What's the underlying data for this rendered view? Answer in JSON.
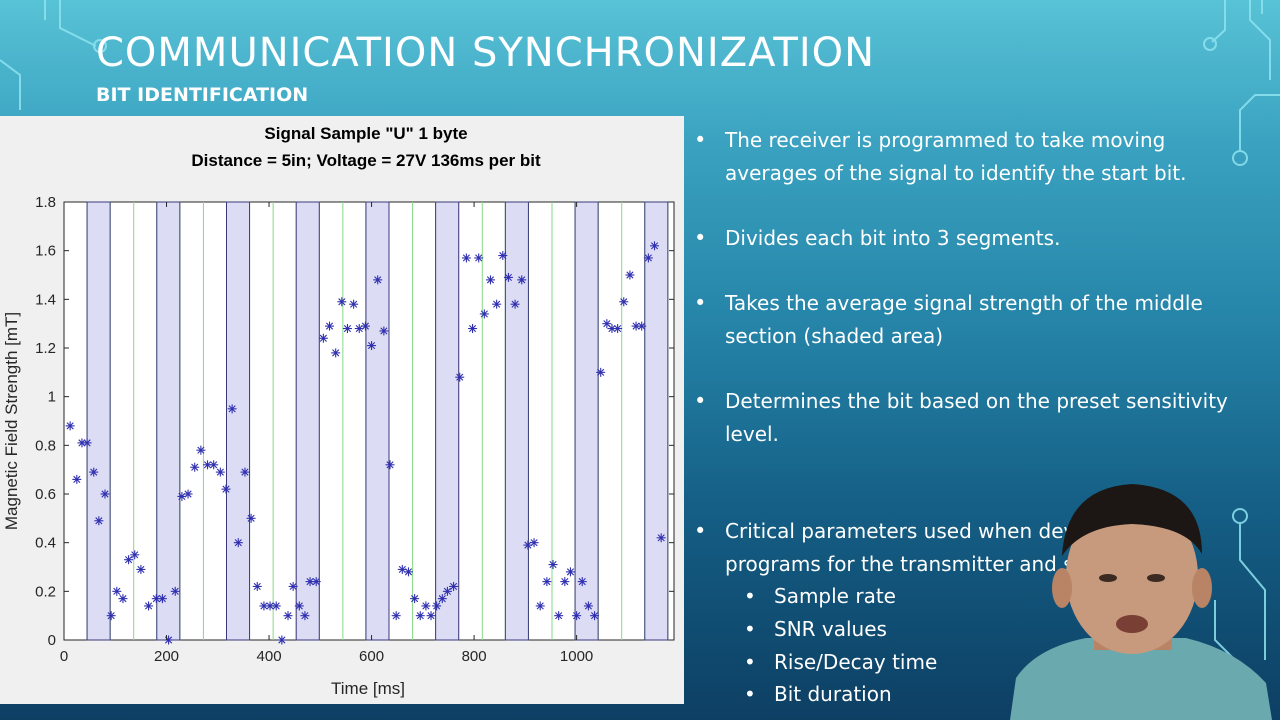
{
  "slide": {
    "title": "COMMUNICATION SYNCHRONIZATION",
    "subtitle": "BIT IDENTIFICATION"
  },
  "bullets": [
    {
      "text": "The receiver is programmed to take moving averages of the signal to identify the start bit."
    },
    {
      "text": "Divides each bit into 3 segments."
    },
    {
      "text": "Takes the average signal strength of the middle section (shaded area)"
    },
    {
      "text": "Determines the bit based on the preset sensitivity level."
    },
    {
      "text": "Critical parameters used when developing the programs for the transmitter and sensor:"
    }
  ],
  "sub_bullets": [
    {
      "text": "Sample rate"
    },
    {
      "text": "SNR values"
    },
    {
      "text": "Rise/Decay time"
    },
    {
      "text": "Bit duration"
    }
  ],
  "colors": {
    "marker": "#3030b0",
    "shade_fill": "#dcdcf4",
    "shade_stroke": "#3a3a7a",
    "grid_green": "#88d888"
  },
  "chart_data": {
    "type": "scatter",
    "title_lines": [
      "Signal Sample \"U\" 1 byte",
      "Distance = 5in; Voltage = 27V 136ms per bit"
    ],
    "xlabel": "Time [ms]",
    "ylabel": "Magnetic Field Strength [mT]",
    "xlim": [
      0,
      1190
    ],
    "ylim": [
      0,
      1.8
    ],
    "xticks": [
      0,
      200,
      400,
      600,
      800,
      1000
    ],
    "yticks": [
      0,
      0.2,
      0.4,
      0.6,
      0.8,
      1,
      1.2,
      1.4,
      1.6,
      1.8
    ],
    "ytick_labels": [
      "0",
      "0.2",
      "0.4",
      "0.6",
      "0.8",
      "1",
      "1.2",
      "1.4",
      "1.6",
      "1.8"
    ],
    "marker": "asterisk",
    "shaded_regions": [
      [
        45,
        90
      ],
      [
        181,
        226
      ],
      [
        317,
        362
      ],
      [
        453,
        498
      ],
      [
        589,
        634
      ],
      [
        725,
        770
      ],
      [
        861,
        906
      ],
      [
        997,
        1042
      ],
      [
        1133,
        1178
      ]
    ],
    "segment_lines": [
      45,
      90,
      136,
      181,
      226,
      272,
      317,
      362,
      408,
      453,
      498,
      544,
      589,
      634,
      680,
      725,
      770,
      816,
      861,
      906,
      952,
      997,
      1042,
      1088,
      1133,
      1178
    ],
    "points": [
      [
        12,
        0.88
      ],
      [
        25,
        0.66
      ],
      [
        35,
        0.81
      ],
      [
        45,
        0.81
      ],
      [
        58,
        0.69
      ],
      [
        68,
        0.49
      ],
      [
        80,
        0.6
      ],
      [
        92,
        0.1
      ],
      [
        103,
        0.2
      ],
      [
        115,
        0.17
      ],
      [
        126,
        0.33
      ],
      [
        138,
        0.35
      ],
      [
        150,
        0.29
      ],
      [
        165,
        0.14
      ],
      [
        180,
        0.17
      ],
      [
        192,
        0.17
      ],
      [
        204,
        0.0
      ],
      [
        217,
        0.2
      ],
      [
        230,
        0.59
      ],
      [
        242,
        0.6
      ],
      [
        255,
        0.71
      ],
      [
        267,
        0.78
      ],
      [
        280,
        0.72
      ],
      [
        292,
        0.72
      ],
      [
        305,
        0.69
      ],
      [
        316,
        0.62
      ],
      [
        328,
        0.95
      ],
      [
        340,
        0.4
      ],
      [
        353,
        0.69
      ],
      [
        365,
        0.5
      ],
      [
        377,
        0.22
      ],
      [
        390,
        0.14
      ],
      [
        402,
        0.14
      ],
      [
        414,
        0.14
      ],
      [
        425,
        0.0
      ],
      [
        437,
        0.1
      ],
      [
        447,
        0.22
      ],
      [
        459,
        0.14
      ],
      [
        470,
        0.1
      ],
      [
        480,
        0.24
      ],
      [
        492,
        0.24
      ],
      [
        506,
        1.24
      ],
      [
        518,
        1.29
      ],
      [
        530,
        1.18
      ],
      [
        542,
        1.39
      ],
      [
        553,
        1.28
      ],
      [
        565,
        1.38
      ],
      [
        576,
        1.28
      ],
      [
        588,
        1.29
      ],
      [
        600,
        1.21
      ],
      [
        612,
        1.48
      ],
      [
        624,
        1.27
      ],
      [
        636,
        0.72
      ],
      [
        648,
        0.1
      ],
      [
        660,
        0.29
      ],
      [
        672,
        0.28
      ],
      [
        684,
        0.17
      ],
      [
        695,
        0.1
      ],
      [
        706,
        0.14
      ],
      [
        716,
        0.1
      ],
      [
        727,
        0.14
      ],
      [
        738,
        0.17
      ],
      [
        748,
        0.2
      ],
      [
        760,
        0.22
      ],
      [
        772,
        1.08
      ],
      [
        785,
        1.57
      ],
      [
        797,
        1.28
      ],
      [
        809,
        1.57
      ],
      [
        820,
        1.34
      ],
      [
        832,
        1.48
      ],
      [
        844,
        1.38
      ],
      [
        856,
        1.58
      ],
      [
        867,
        1.49
      ],
      [
        880,
        1.38
      ],
      [
        893,
        1.48
      ],
      [
        905,
        0.39
      ],
      [
        917,
        0.4
      ],
      [
        929,
        0.14
      ],
      [
        942,
        0.24
      ],
      [
        954,
        0.31
      ],
      [
        965,
        0.1
      ],
      [
        977,
        0.24
      ],
      [
        988,
        0.28
      ],
      [
        1000,
        0.1
      ],
      [
        1011,
        0.24
      ],
      [
        1023,
        0.14
      ],
      [
        1035,
        0.1
      ],
      [
        1047,
        1.1
      ],
      [
        1059,
        1.3
      ],
      [
        1069,
        1.28
      ],
      [
        1080,
        1.28
      ],
      [
        1092,
        1.39
      ],
      [
        1104,
        1.5
      ],
      [
        1116,
        1.29
      ],
      [
        1127,
        1.29
      ],
      [
        1140,
        1.57
      ],
      [
        1152,
        1.62
      ],
      [
        1165,
        0.42
      ]
    ]
  }
}
